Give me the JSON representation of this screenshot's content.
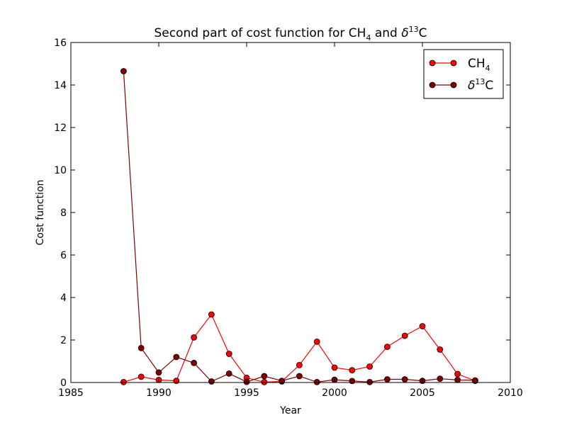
{
  "chart_data": {
    "type": "line",
    "title": {
      "prefix": "Second part of cost function for CH",
      "sub": "4",
      "middle": " and ",
      "delta": "δ",
      "sup": "13",
      "suffix": "C"
    },
    "xlabel": "Year",
    "ylabel": "Cost function",
    "xlim": [
      1985,
      2010
    ],
    "ylim": [
      0,
      16
    ],
    "xticks": [
      1985,
      1990,
      1995,
      2000,
      2005,
      2010
    ],
    "yticks": [
      0,
      2,
      4,
      6,
      8,
      10,
      12,
      14,
      16
    ],
    "grid": false,
    "legend_position": "top-right",
    "series": [
      {
        "key": "ch4",
        "legend": {
          "main": "CH",
          "sub": "4"
        },
        "color": "#ff0000",
        "x": [
          1988,
          1989,
          1990,
          1991,
          1992,
          1993,
          1994,
          1995,
          1996,
          1997,
          1998,
          1999,
          2000,
          2001,
          2002,
          2003,
          2004,
          2005,
          2006,
          2007,
          2008
        ],
        "y": [
          0.02,
          0.27,
          0.12,
          0.08,
          2.12,
          3.2,
          1.35,
          0.22,
          0.02,
          0.05,
          0.82,
          1.92,
          0.7,
          0.58,
          0.75,
          1.68,
          2.2,
          2.65,
          1.55,
          0.4,
          0.08
        ]
      },
      {
        "key": "d13c",
        "legend": {
          "delta": "δ",
          "sup": "13",
          "main": "C"
        },
        "color": "#800000",
        "x": [
          1988,
          1989,
          1990,
          1991,
          1992,
          1993,
          1994,
          1995,
          1996,
          1997,
          1998,
          1999,
          2000,
          2001,
          2002,
          2003,
          2004,
          2005,
          2006,
          2007,
          2008
        ],
        "y": [
          14.65,
          1.62,
          0.47,
          1.2,
          0.92,
          0.05,
          0.42,
          0.03,
          0.3,
          0.08,
          0.3,
          0.02,
          0.13,
          0.07,
          0.02,
          0.15,
          0.15,
          0.08,
          0.18,
          0.12,
          0.1
        ]
      }
    ]
  }
}
